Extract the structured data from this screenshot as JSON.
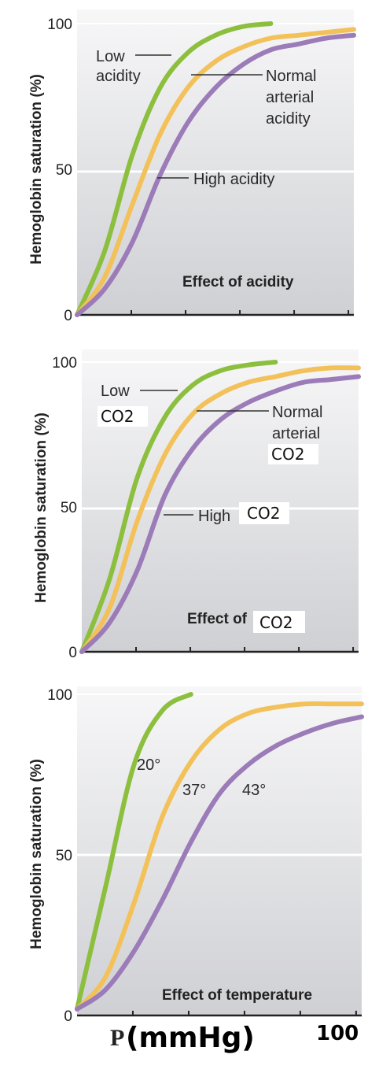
{
  "chart_data": [
    {
      "type": "line",
      "title": "Effect of acidity",
      "ylabel": "Hemoglobin saturation (%)",
      "ylim": [
        0,
        100
      ],
      "yticks": [
        "100",
        "50",
        "0"
      ],
      "x": [
        0,
        10,
        20,
        30,
        40,
        50,
        60,
        70,
        80,
        90,
        100
      ],
      "series": [
        {
          "name": "Low acidity",
          "color": "#8DBF3F",
          "values": [
            0,
            22,
            55,
            78,
            90,
            96,
            99,
            100,
            null,
            null,
            null
          ]
        },
        {
          "name": "Normal arterial acidity",
          "color": "#F3C15A",
          "values": [
            0,
            13,
            38,
            62,
            78,
            87,
            92,
            95,
            96,
            97,
            98
          ]
        },
        {
          "name": "High acidity",
          "color": "#9B7BB8",
          "values": [
            0,
            9,
            25,
            48,
            66,
            78,
            86,
            91,
            93,
            95,
            96
          ]
        }
      ],
      "annotations": [
        {
          "lines": [
            "Low",
            "acidity"
          ]
        },
        {
          "lines": [
            "Normal",
            "arterial",
            "acidity"
          ]
        },
        {
          "lines": [
            "High acidity"
          ]
        }
      ]
    },
    {
      "type": "line",
      "title": "Effect of CO2",
      "ylabel": "Hemoglobin saturation (%)",
      "ylim": [
        0,
        100
      ],
      "yticks": [
        "100",
        "50",
        "0"
      ],
      "x": [
        0,
        10,
        20,
        30,
        40,
        50,
        60,
        70,
        80,
        90,
        100
      ],
      "series": [
        {
          "name": "Low CO2",
          "color": "#8DBF3F",
          "values": [
            0,
            25,
            60,
            81,
            92,
            97,
            99,
            100,
            null,
            null,
            null
          ]
        },
        {
          "name": "Normal arterial CO2",
          "color": "#F3C15A",
          "values": [
            0,
            15,
            45,
            68,
            82,
            89,
            93,
            95,
            97,
            98,
            98
          ]
        },
        {
          "name": "High CO2",
          "color": "#9B7BB8",
          "values": [
            0,
            10,
            28,
            54,
            70,
            80,
            86,
            90,
            93,
            94,
            95
          ]
        }
      ],
      "annotations": [
        {
          "lines": [
            "Low"
          ],
          "label_co2": "CO2"
        },
        {
          "lines": [
            "Normal",
            "arterial"
          ],
          "label_co2": "CO2"
        },
        {
          "lines": [
            "High"
          ],
          "label_co2": "CO2"
        }
      ],
      "title_prefix": "Effect of",
      "title_co2": "CO2"
    },
    {
      "type": "line",
      "title": "Effect of temperature",
      "ylabel": "Hemoglobin saturation (%)",
      "ylim": [
        0,
        100
      ],
      "yticks": [
        "100",
        "50",
        "0"
      ],
      "x": [
        0,
        10,
        20,
        30,
        40,
        50,
        60,
        70,
        80,
        90,
        100
      ],
      "series": [
        {
          "name": "20°",
          "color": "#8DBF3F",
          "values": [
            2,
            40,
            78,
            95,
            100,
            null,
            null,
            null,
            null,
            null,
            null
          ]
        },
        {
          "name": "37°",
          "color": "#F3C15A",
          "values": [
            2,
            12,
            35,
            62,
            79,
            89,
            94,
            96,
            97,
            97,
            97
          ]
        },
        {
          "name": "43°",
          "color": "#9B7BB8",
          "values": [
            2,
            8,
            20,
            36,
            54,
            69,
            78,
            84,
            88,
            91,
            93
          ]
        }
      ]
    }
  ],
  "bottom_label": {
    "p": "P",
    "unit": "(mmHg)",
    "max": "100"
  }
}
